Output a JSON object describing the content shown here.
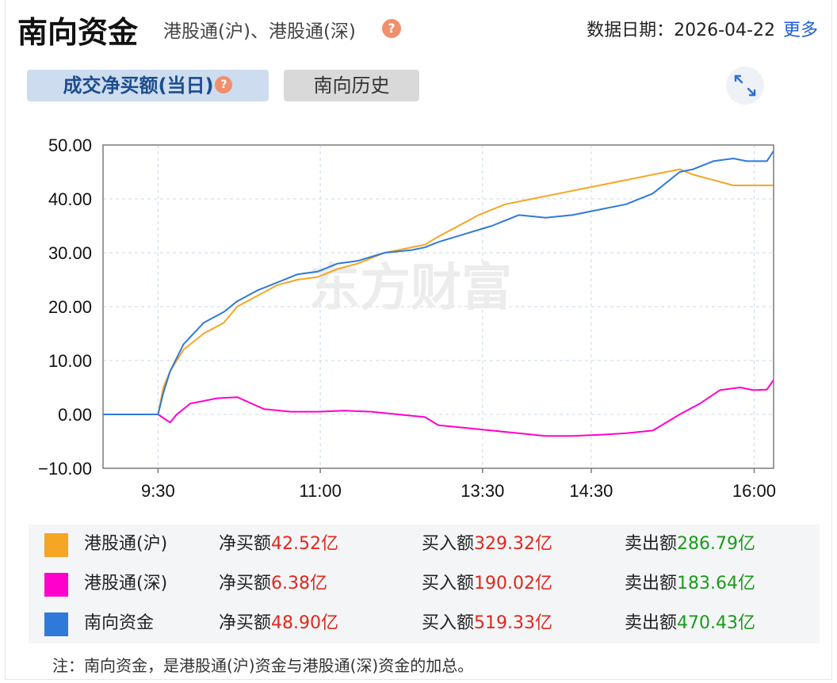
{
  "header": {
    "title": "南向资金",
    "subtitle": "港股通(沪)、港股通(深)",
    "help_glyph": "?",
    "date_label": "数据日期：",
    "date_value": "2026-04-22",
    "more_link": "更多"
  },
  "tabs": [
    {
      "label": "成交净买额(当日)",
      "active": true
    },
    {
      "label": "南向历史",
      "active": false
    }
  ],
  "toolbar": {
    "expand_icon": "expand-arrows-icon"
  },
  "watermark": "东方财富",
  "chart_data": {
    "type": "line",
    "y_tick_labels": [
      "50.00",
      "40.00",
      "30.00",
      "20.00",
      "10.00",
      "0.00",
      "−10.00"
    ],
    "ylim": [
      -10,
      50
    ],
    "x_tick_labels": [
      "9:30",
      "11:00",
      "13:30",
      "14:30",
      "16:00"
    ],
    "x_tick_positions": [
      0.082,
      0.324,
      0.566,
      0.728,
      0.971
    ],
    "grid": true,
    "x_domain": "trading-session fraction (0 = 9:00 open, 1 = 16:10 close)",
    "series": [
      {
        "name": "港股通(沪)",
        "color": "#f5a623",
        "points": [
          [
            0,
            0
          ],
          [
            0.082,
            0
          ],
          [
            0.09,
            5
          ],
          [
            0.1,
            8
          ],
          [
            0.12,
            12
          ],
          [
            0.15,
            15
          ],
          [
            0.18,
            17
          ],
          [
            0.2,
            20
          ],
          [
            0.23,
            22
          ],
          [
            0.26,
            24
          ],
          [
            0.29,
            25
          ],
          [
            0.32,
            25.5
          ],
          [
            0.35,
            27
          ],
          [
            0.38,
            28
          ],
          [
            0.42,
            30
          ],
          [
            0.48,
            31.5
          ],
          [
            0.5,
            33
          ],
          [
            0.53,
            35
          ],
          [
            0.56,
            37
          ],
          [
            0.6,
            39
          ],
          [
            0.64,
            40
          ],
          [
            0.68,
            41
          ],
          [
            0.72,
            42
          ],
          [
            0.76,
            43
          ],
          [
            0.8,
            44
          ],
          [
            0.84,
            45
          ],
          [
            0.86,
            45.5
          ],
          [
            0.88,
            44.5
          ],
          [
            0.91,
            43.5
          ],
          [
            0.94,
            42.5
          ],
          [
            1.0,
            42.52
          ]
        ]
      },
      {
        "name": "港股通(深)",
        "color": "#ff00cc",
        "points": [
          [
            0,
            0
          ],
          [
            0.082,
            0
          ],
          [
            0.1,
            -1.5
          ],
          [
            0.11,
            0
          ],
          [
            0.13,
            2
          ],
          [
            0.17,
            3
          ],
          [
            0.2,
            3.2
          ],
          [
            0.24,
            1
          ],
          [
            0.28,
            0.5
          ],
          [
            0.32,
            0.5
          ],
          [
            0.36,
            0.7
          ],
          [
            0.4,
            0.5
          ],
          [
            0.44,
            0
          ],
          [
            0.48,
            -0.5
          ],
          [
            0.5,
            -2
          ],
          [
            0.54,
            -2.5
          ],
          [
            0.58,
            -3
          ],
          [
            0.62,
            -3.5
          ],
          [
            0.66,
            -4
          ],
          [
            0.7,
            -4
          ],
          [
            0.74,
            -3.8
          ],
          [
            0.78,
            -3.5
          ],
          [
            0.82,
            -3
          ],
          [
            0.86,
            0
          ],
          [
            0.89,
            2
          ],
          [
            0.92,
            4.5
          ],
          [
            0.95,
            5
          ],
          [
            0.97,
            4.5
          ],
          [
            0.99,
            4.6
          ],
          [
            1.0,
            6.38
          ]
        ]
      },
      {
        "name": "南向资金",
        "color": "#2f7ad8",
        "points": [
          [
            0,
            0
          ],
          [
            0.082,
            0
          ],
          [
            0.09,
            4
          ],
          [
            0.1,
            8
          ],
          [
            0.12,
            13
          ],
          [
            0.15,
            17
          ],
          [
            0.18,
            19
          ],
          [
            0.2,
            21
          ],
          [
            0.23,
            23
          ],
          [
            0.26,
            24.5
          ],
          [
            0.29,
            26
          ],
          [
            0.32,
            26.5
          ],
          [
            0.35,
            28
          ],
          [
            0.38,
            28.5
          ],
          [
            0.42,
            30
          ],
          [
            0.46,
            30.5
          ],
          [
            0.48,
            31
          ],
          [
            0.5,
            32
          ],
          [
            0.54,
            33.5
          ],
          [
            0.58,
            35
          ],
          [
            0.62,
            37
          ],
          [
            0.66,
            36.5
          ],
          [
            0.7,
            37
          ],
          [
            0.74,
            38
          ],
          [
            0.78,
            39
          ],
          [
            0.82,
            41
          ],
          [
            0.86,
            45
          ],
          [
            0.88,
            45.5
          ],
          [
            0.91,
            47
          ],
          [
            0.94,
            47.5
          ],
          [
            0.96,
            47
          ],
          [
            0.99,
            47
          ],
          [
            1.0,
            48.9
          ]
        ]
      }
    ]
  },
  "legend": {
    "rows": [
      {
        "name": "港股通(沪)",
        "color": "#f5a623",
        "net_label": "净买额",
        "net_value": "42.52亿",
        "buy_label": "买入额",
        "buy_value": "329.32亿",
        "sell_label": "卖出额",
        "sell_value": "286.79亿"
      },
      {
        "name": "港股通(深)",
        "color": "#ff00cc",
        "net_label": "净买额",
        "net_value": "6.38亿",
        "buy_label": "买入额",
        "buy_value": "190.02亿",
        "sell_label": "卖出额",
        "sell_value": "183.64亿"
      },
      {
        "name": "南向资金",
        "color": "#2f7ad8",
        "net_label": "净买额",
        "net_value": "48.90亿",
        "buy_label": "买入额",
        "buy_value": "519.33亿",
        "sell_label": "卖出额",
        "sell_value": "470.43亿"
      }
    ]
  },
  "note": "注：南向资金，是港股通(沪)资金与港股通(深)资金的加总。"
}
